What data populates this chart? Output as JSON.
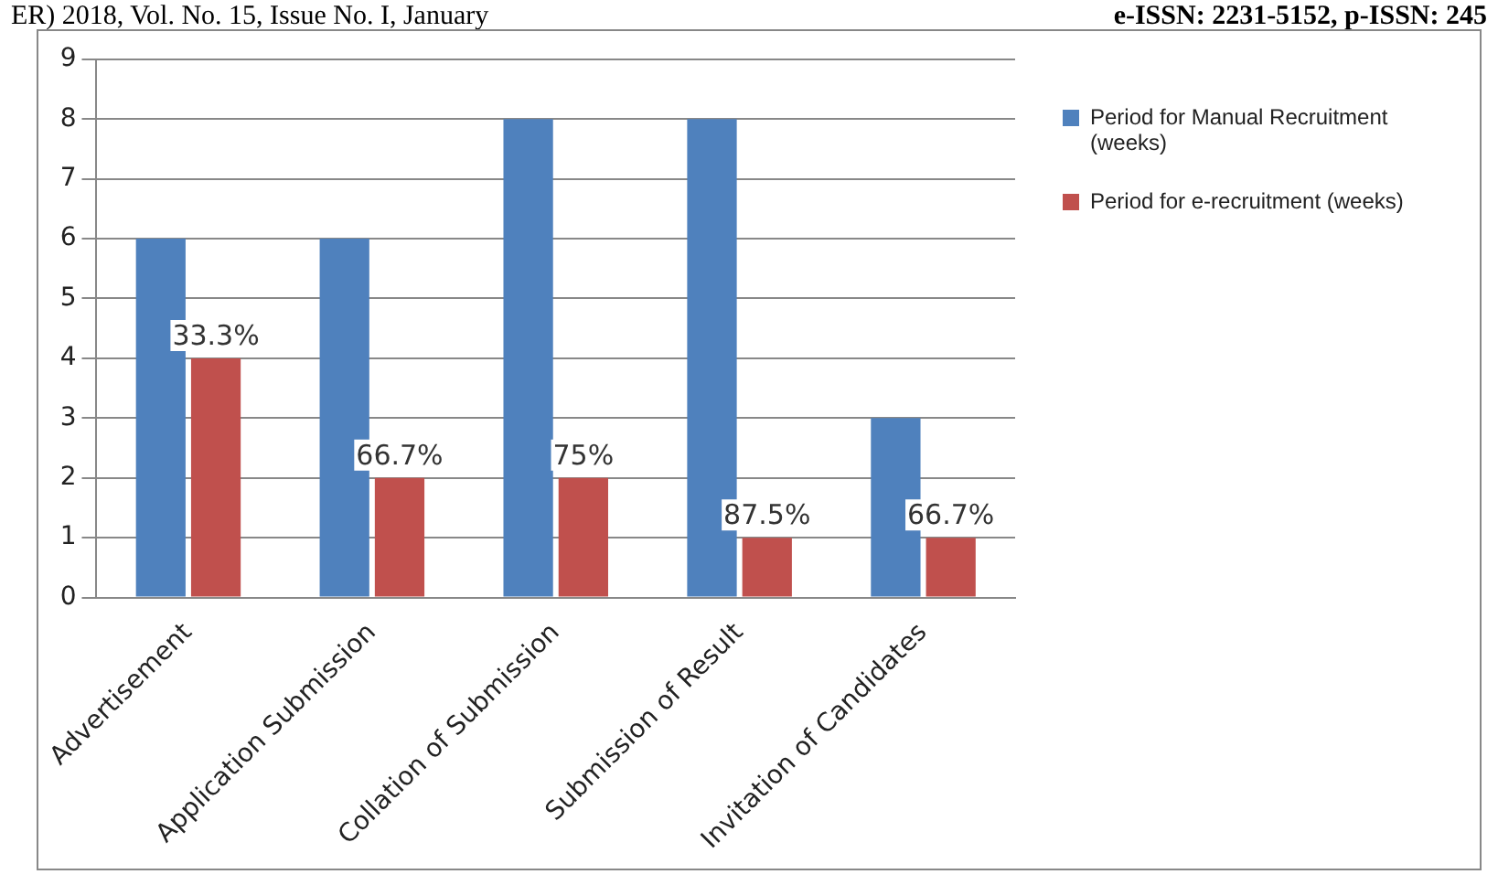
{
  "chart_data": {
    "type": "bar",
    "categories": [
      "Advertisement",
      "Application Submission",
      "Collation of Submission",
      "Submission of Result",
      "Invitation of Candidates"
    ],
    "series": [
      {
        "name": "Period for Manual Recruitment (weeks)",
        "color": "#4f81bd",
        "values": [
          6,
          6,
          8,
          8,
          3
        ]
      },
      {
        "name": "Period for e-recruitment (weeks)",
        "color": "#c0504d",
        "values": [
          4,
          2,
          2,
          1,
          1
        ]
      }
    ],
    "ylim": [
      0,
      9
    ],
    "yticks": [
      0,
      1,
      2,
      3,
      4,
      5,
      6,
      7,
      8,
      9
    ],
    "grid": "y",
    "legend": "right",
    "annotations": [
      "ER) 2018, Vol. No. 15, Issue No. I, January",
      "e-ISSN: 2231-5152, p-ISSN: 245",
      {
        "text": "33.3%",
        "x": "Advertisement",
        "y": 4
      },
      {
        "text": "66.7%",
        "x": "Application Submission",
        "y": 2
      },
      {
        "text": "75%",
        "x": "Collation of Submission",
        "y": 2
      },
      {
        "text": "87.5%",
        "x": "Submission of Result",
        "y": 1
      },
      {
        "text": "66.7%",
        "x": "Invitation of Candidates",
        "y": 1
      }
    ]
  }
}
